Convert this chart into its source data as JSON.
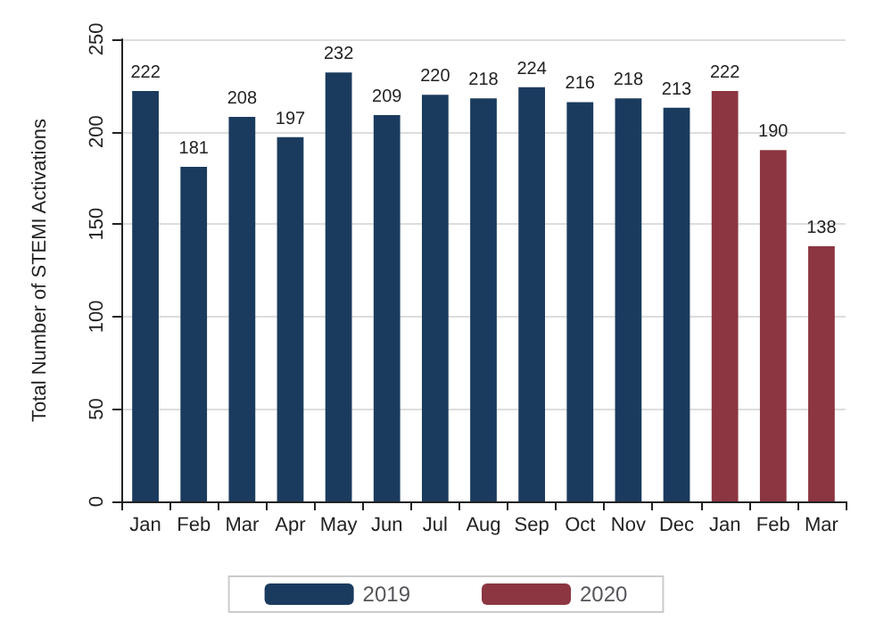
{
  "chart_data": {
    "type": "bar",
    "ylabel": "Total Number of STEMI Activations",
    "categories": [
      "Jan",
      "Feb",
      "Mar",
      "Apr",
      "May",
      "Jun",
      "Jul",
      "Aug",
      "Sep",
      "Oct",
      "Nov",
      "Dec",
      "Jan",
      "Feb",
      "Mar"
    ],
    "series": [
      {
        "name": "2019",
        "color": "#1b3b5e",
        "values": [
          222,
          181,
          208,
          197,
          232,
          209,
          220,
          218,
          224,
          216,
          218,
          213,
          null,
          null,
          null
        ]
      },
      {
        "name": "2020",
        "color": "#8c3641",
        "values": [
          null,
          null,
          null,
          null,
          null,
          null,
          null,
          null,
          null,
          null,
          null,
          null,
          222,
          190,
          138
        ]
      }
    ],
    "ylim": [
      0,
      250
    ],
    "yticks": [
      0,
      50,
      100,
      150,
      200,
      250
    ],
    "grid": "y",
    "legend": "bottom",
    "data_labels": true
  }
}
